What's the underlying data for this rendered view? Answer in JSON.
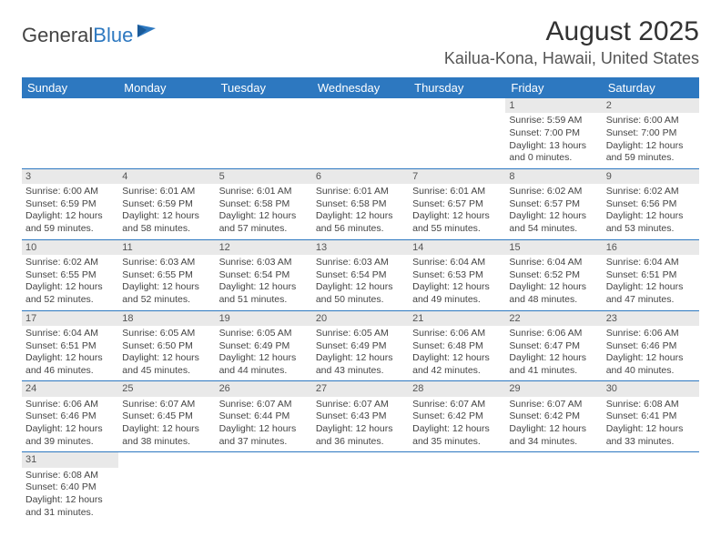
{
  "logo": {
    "text_general": "General",
    "text_blue": "Blue"
  },
  "header": {
    "month_title": "August 2025",
    "location": "Kailua-Kona, Hawaii, United States"
  },
  "colors": {
    "header_bg": "#2d78c0",
    "header_fg": "#ffffff",
    "daynum_bg": "#e9e9e9",
    "border": "#2d78c0",
    "text": "#444444"
  },
  "day_names": [
    "Sunday",
    "Monday",
    "Tuesday",
    "Wednesday",
    "Thursday",
    "Friday",
    "Saturday"
  ],
  "weeks": [
    [
      null,
      null,
      null,
      null,
      null,
      {
        "n": "1",
        "sunrise": "Sunrise: 5:59 AM",
        "sunset": "Sunset: 7:00 PM",
        "day1": "Daylight: 13 hours",
        "day2": "and 0 minutes."
      },
      {
        "n": "2",
        "sunrise": "Sunrise: 6:00 AM",
        "sunset": "Sunset: 7:00 PM",
        "day1": "Daylight: 12 hours",
        "day2": "and 59 minutes."
      }
    ],
    [
      {
        "n": "3",
        "sunrise": "Sunrise: 6:00 AM",
        "sunset": "Sunset: 6:59 PM",
        "day1": "Daylight: 12 hours",
        "day2": "and 59 minutes."
      },
      {
        "n": "4",
        "sunrise": "Sunrise: 6:01 AM",
        "sunset": "Sunset: 6:59 PM",
        "day1": "Daylight: 12 hours",
        "day2": "and 58 minutes."
      },
      {
        "n": "5",
        "sunrise": "Sunrise: 6:01 AM",
        "sunset": "Sunset: 6:58 PM",
        "day1": "Daylight: 12 hours",
        "day2": "and 57 minutes."
      },
      {
        "n": "6",
        "sunrise": "Sunrise: 6:01 AM",
        "sunset": "Sunset: 6:58 PM",
        "day1": "Daylight: 12 hours",
        "day2": "and 56 minutes."
      },
      {
        "n": "7",
        "sunrise": "Sunrise: 6:01 AM",
        "sunset": "Sunset: 6:57 PM",
        "day1": "Daylight: 12 hours",
        "day2": "and 55 minutes."
      },
      {
        "n": "8",
        "sunrise": "Sunrise: 6:02 AM",
        "sunset": "Sunset: 6:57 PM",
        "day1": "Daylight: 12 hours",
        "day2": "and 54 minutes."
      },
      {
        "n": "9",
        "sunrise": "Sunrise: 6:02 AM",
        "sunset": "Sunset: 6:56 PM",
        "day1": "Daylight: 12 hours",
        "day2": "and 53 minutes."
      }
    ],
    [
      {
        "n": "10",
        "sunrise": "Sunrise: 6:02 AM",
        "sunset": "Sunset: 6:55 PM",
        "day1": "Daylight: 12 hours",
        "day2": "and 52 minutes."
      },
      {
        "n": "11",
        "sunrise": "Sunrise: 6:03 AM",
        "sunset": "Sunset: 6:55 PM",
        "day1": "Daylight: 12 hours",
        "day2": "and 52 minutes."
      },
      {
        "n": "12",
        "sunrise": "Sunrise: 6:03 AM",
        "sunset": "Sunset: 6:54 PM",
        "day1": "Daylight: 12 hours",
        "day2": "and 51 minutes."
      },
      {
        "n": "13",
        "sunrise": "Sunrise: 6:03 AM",
        "sunset": "Sunset: 6:54 PM",
        "day1": "Daylight: 12 hours",
        "day2": "and 50 minutes."
      },
      {
        "n": "14",
        "sunrise": "Sunrise: 6:04 AM",
        "sunset": "Sunset: 6:53 PM",
        "day1": "Daylight: 12 hours",
        "day2": "and 49 minutes."
      },
      {
        "n": "15",
        "sunrise": "Sunrise: 6:04 AM",
        "sunset": "Sunset: 6:52 PM",
        "day1": "Daylight: 12 hours",
        "day2": "and 48 minutes."
      },
      {
        "n": "16",
        "sunrise": "Sunrise: 6:04 AM",
        "sunset": "Sunset: 6:51 PM",
        "day1": "Daylight: 12 hours",
        "day2": "and 47 minutes."
      }
    ],
    [
      {
        "n": "17",
        "sunrise": "Sunrise: 6:04 AM",
        "sunset": "Sunset: 6:51 PM",
        "day1": "Daylight: 12 hours",
        "day2": "and 46 minutes."
      },
      {
        "n": "18",
        "sunrise": "Sunrise: 6:05 AM",
        "sunset": "Sunset: 6:50 PM",
        "day1": "Daylight: 12 hours",
        "day2": "and 45 minutes."
      },
      {
        "n": "19",
        "sunrise": "Sunrise: 6:05 AM",
        "sunset": "Sunset: 6:49 PM",
        "day1": "Daylight: 12 hours",
        "day2": "and 44 minutes."
      },
      {
        "n": "20",
        "sunrise": "Sunrise: 6:05 AM",
        "sunset": "Sunset: 6:49 PM",
        "day1": "Daylight: 12 hours",
        "day2": "and 43 minutes."
      },
      {
        "n": "21",
        "sunrise": "Sunrise: 6:06 AM",
        "sunset": "Sunset: 6:48 PM",
        "day1": "Daylight: 12 hours",
        "day2": "and 42 minutes."
      },
      {
        "n": "22",
        "sunrise": "Sunrise: 6:06 AM",
        "sunset": "Sunset: 6:47 PM",
        "day1": "Daylight: 12 hours",
        "day2": "and 41 minutes."
      },
      {
        "n": "23",
        "sunrise": "Sunrise: 6:06 AM",
        "sunset": "Sunset: 6:46 PM",
        "day1": "Daylight: 12 hours",
        "day2": "and 40 minutes."
      }
    ],
    [
      {
        "n": "24",
        "sunrise": "Sunrise: 6:06 AM",
        "sunset": "Sunset: 6:46 PM",
        "day1": "Daylight: 12 hours",
        "day2": "and 39 minutes."
      },
      {
        "n": "25",
        "sunrise": "Sunrise: 6:07 AM",
        "sunset": "Sunset: 6:45 PM",
        "day1": "Daylight: 12 hours",
        "day2": "and 38 minutes."
      },
      {
        "n": "26",
        "sunrise": "Sunrise: 6:07 AM",
        "sunset": "Sunset: 6:44 PM",
        "day1": "Daylight: 12 hours",
        "day2": "and 37 minutes."
      },
      {
        "n": "27",
        "sunrise": "Sunrise: 6:07 AM",
        "sunset": "Sunset: 6:43 PM",
        "day1": "Daylight: 12 hours",
        "day2": "and 36 minutes."
      },
      {
        "n": "28",
        "sunrise": "Sunrise: 6:07 AM",
        "sunset": "Sunset: 6:42 PM",
        "day1": "Daylight: 12 hours",
        "day2": "and 35 minutes."
      },
      {
        "n": "29",
        "sunrise": "Sunrise: 6:07 AM",
        "sunset": "Sunset: 6:42 PM",
        "day1": "Daylight: 12 hours",
        "day2": "and 34 minutes."
      },
      {
        "n": "30",
        "sunrise": "Sunrise: 6:08 AM",
        "sunset": "Sunset: 6:41 PM",
        "day1": "Daylight: 12 hours",
        "day2": "and 33 minutes."
      }
    ],
    [
      {
        "n": "31",
        "sunrise": "Sunrise: 6:08 AM",
        "sunset": "Sunset: 6:40 PM",
        "day1": "Daylight: 12 hours",
        "day2": "and 31 minutes."
      },
      null,
      null,
      null,
      null,
      null,
      null
    ]
  ]
}
